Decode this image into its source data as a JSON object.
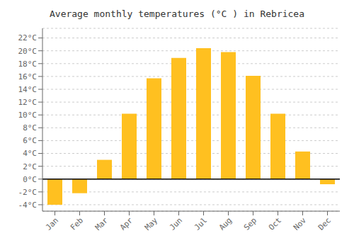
{
  "chart_data": {
    "type": "bar",
    "title": "Average monthly temperatures (°C ) in Rebricea",
    "categories": [
      "Jan",
      "Feb",
      "Mar",
      "Apr",
      "May",
      "Jun",
      "Jul",
      "Aug",
      "Sep",
      "Oct",
      "Nov",
      "Dec"
    ],
    "values": [
      -4.0,
      -2.2,
      3.0,
      10.2,
      15.7,
      18.9,
      20.4,
      19.8,
      16.1,
      10.2,
      4.3,
      -0.8
    ],
    "color": "#FFC020",
    "ylim": [
      -5.0,
      23.5
    ],
    "yticks": [
      {
        "value": -4,
        "label": "-4°C"
      },
      {
        "value": -2,
        "label": "-2°C"
      },
      {
        "value": 0,
        "label": "0°C"
      },
      {
        "value": 2,
        "label": "2°C"
      },
      {
        "value": 4,
        "label": "4°C"
      },
      {
        "value": 6,
        "label": "6°C"
      },
      {
        "value": 8,
        "label": "8°C"
      },
      {
        "value": 10,
        "label": "10°C"
      },
      {
        "value": 12,
        "label": "12°C"
      },
      {
        "value": 14,
        "label": "14°C"
      },
      {
        "value": 16,
        "label": "16°C"
      },
      {
        "value": 18,
        "label": "18°C"
      },
      {
        "value": 20,
        "label": "20°C"
      },
      {
        "value": 22,
        "label": "22°C"
      }
    ],
    "grid": true
  }
}
